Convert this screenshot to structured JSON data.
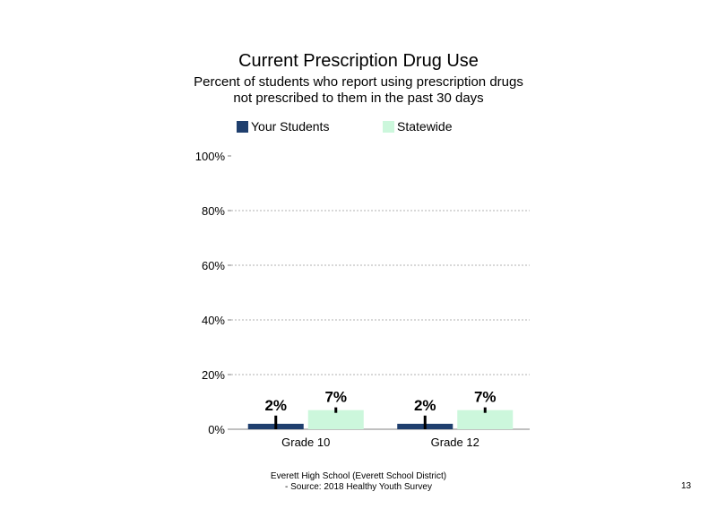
{
  "chart_data": {
    "type": "bar",
    "title": "Current Prescription Drug Use",
    "subtitle": [
      "Percent of students  who report using prescription drugs",
      "not prescribed to them in the past 30 days"
    ],
    "categories": [
      "Grade 10",
      "Grade 12"
    ],
    "series": [
      {
        "name": "Your Students",
        "color": "#1f3f6e",
        "values": [
          2,
          2
        ],
        "labels": [
          "2%",
          "2%"
        ],
        "error": [
          [
            0,
            5
          ],
          [
            0,
            5
          ]
        ]
      },
      {
        "name": "Statewide",
        "color": "#ccf7dc",
        "values": [
          7,
          7
        ],
        "labels": [
          "7%",
          "7%"
        ],
        "error": [
          [
            6,
            8
          ],
          [
            6,
            8
          ]
        ]
      }
    ],
    "ylim": [
      0,
      100
    ],
    "yticks": [
      0,
      20,
      40,
      60,
      80,
      100
    ],
    "ytick_labels": [
      "0%",
      "20%",
      "40%",
      "60%",
      "80%",
      "100%"
    ],
    "grid": true,
    "legend": "top"
  },
  "footer": {
    "line1": "Everett High  School (Everett School District)",
    "line2": "- Source: 2018 Healthy  Youth Survey"
  },
  "page_number": "13"
}
